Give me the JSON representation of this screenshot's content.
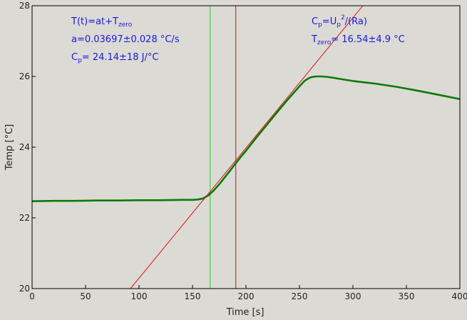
{
  "chart_data": {
    "type": "line",
    "xlabel": "Time [s]",
    "ylabel": "Temp [°C]",
    "xlim": [
      0,
      400
    ],
    "ylim": [
      20,
      28
    ],
    "x_ticks": [
      0,
      50,
      100,
      150,
      200,
      250,
      300,
      350,
      400
    ],
    "y_ticks": [
      20,
      22,
      24,
      26,
      28
    ],
    "grid": false,
    "series": [
      {
        "role": "measurement",
        "color": "#0a7a0a",
        "x": [
          0,
          20,
          40,
          60,
          80,
          100,
          120,
          140,
          150,
          155,
          160,
          165,
          170,
          175,
          180,
          185,
          190,
          195,
          200,
          210,
          220,
          230,
          240,
          250,
          255,
          260,
          265,
          270,
          275,
          280,
          290,
          300,
          320,
          340,
          360,
          380,
          400
        ],
        "y": [
          22.47,
          22.48,
          22.48,
          22.49,
          22.49,
          22.5,
          22.5,
          22.51,
          22.51,
          22.52,
          22.55,
          22.64,
          22.78,
          22.95,
          23.14,
          23.33,
          23.53,
          23.72,
          23.9,
          24.28,
          24.65,
          25.02,
          25.38,
          25.72,
          25.88,
          25.97,
          26.0,
          26.0,
          25.99,
          25.97,
          25.92,
          25.87,
          25.8,
          25.71,
          25.6,
          25.48,
          25.36
        ]
      },
      {
        "role": "linear-fit",
        "color": "#dd1111",
        "x": [
          92,
          312
        ],
        "y": [
          20.0,
          28.1
        ]
      }
    ],
    "vertical_markers": [
      {
        "x": 166.5,
        "color": "#22cc22"
      },
      {
        "x": 190.5,
        "color": "#cc1111"
      }
    ],
    "annotations_left": {
      "line1_main": "T(t)=at+T",
      "line1_sub": "zero",
      "line2": "a=0.03697±0.028 °C/s",
      "line3_main": "C",
      "line3_sub": "p",
      "line3_rest": "= 24.14±18 J/°C"
    },
    "annotations_right": {
      "line1_a": "C",
      "line1_sub1": "p",
      "line1_b": "=U",
      "line1_sub2": "p",
      "line1_sup": "2",
      "line1_c": "/(Ra)",
      "line2_main": "T",
      "line2_sub": "zero",
      "line2_rest": "= 16.54±4.9 °C"
    },
    "colors": {
      "annotation_text": "#1a1ad6",
      "background": "#dcdad5",
      "axis": "#000000"
    }
  }
}
